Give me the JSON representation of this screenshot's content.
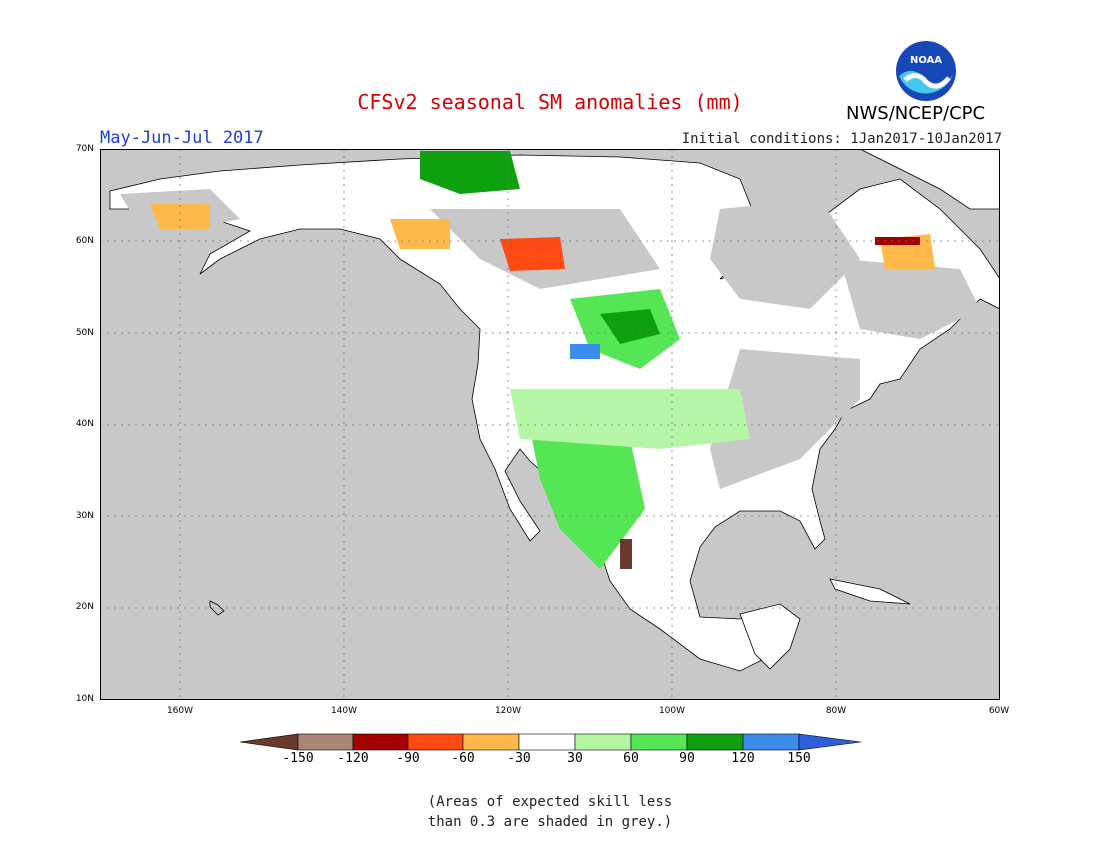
{
  "header": {
    "title": "CFSv2 seasonal SM anomalies (mm)",
    "period": "May-Jun-Jul 2017",
    "initial_conditions": "Initial conditions: 1Jan2017-10Jan2017",
    "agency": "NWS/NCEP/CPC",
    "logo_text": "NOAA"
  },
  "map": {
    "projection": "lat-lon",
    "extent": {
      "lon": [
        -172,
        -60
      ],
      "lat": [
        10,
        70
      ]
    },
    "lat_labels": [
      "70N",
      "60N",
      "50N",
      "40N",
      "30N",
      "20N",
      "10N"
    ],
    "lon_labels": [
      "160W",
      "140W",
      "120W",
      "100W",
      "80W",
      "60W"
    ],
    "grid": "dotted",
    "no_skill_color": "#c8c8c8",
    "no_skill_regions": [
      "Pacific Ocean",
      "Atlantic Ocean",
      "Gulf of Mexico",
      "Caribbean Sea",
      "Hudson Bay",
      "Alaska interior",
      "northern Canada",
      "southeastern US"
    ]
  },
  "legend": {
    "colors": [
      "#6b3a2e",
      "#a88575",
      "#a50000",
      "#ff4a14",
      "#ffb84a",
      "#ffffff",
      "#b4f5a6",
      "#55e655",
      "#0fa00f",
      "#3c8ceb",
      "#2f5fd6"
    ],
    "tick_labels": [
      "-150",
      "-120",
      "-90",
      "-60",
      "-30",
      "30",
      "60",
      "90",
      "120",
      "150"
    ]
  },
  "note": {
    "line1": "(Areas of expected skill less",
    "line2": "than 0.3 are shaded in grey.)"
  }
}
